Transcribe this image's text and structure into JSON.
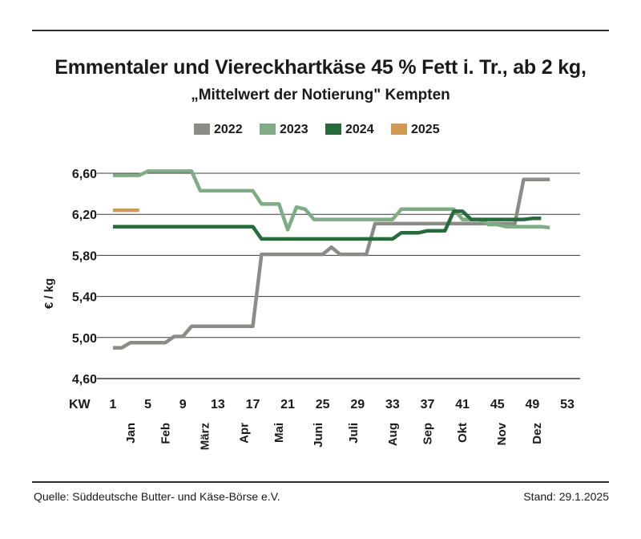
{
  "header": {
    "title": "Emmentaler und Viereckhartkäse 45 % Fett i. Tr., ab 2 kg,",
    "subtitle": "„Mittelwert der Notierung\" Kempten"
  },
  "footer": {
    "source": "Quelle: Süddeutsche Butter- und Käse-Börse e.V.",
    "date": "Stand: 29.1.2025"
  },
  "chart_data": {
    "type": "line",
    "title": "Emmentaler und Viereckhartkäse 45 % Fett i. Tr., ab 2 kg,",
    "subtitle": "„Mittelwert der Notierung\" Kempten",
    "xlabel": "KW",
    "ylabel": "€ / kg",
    "xlim": [
      0,
      53
    ],
    "ylim": [
      4.6,
      6.6
    ],
    "xticks": [
      1,
      5,
      9,
      13,
      17,
      21,
      25,
      29,
      33,
      37,
      41,
      45,
      49,
      53
    ],
    "yticks": [
      4.6,
      5.0,
      5.4,
      5.8,
      6.2,
      6.6
    ],
    "ytick_labels": [
      "4,60",
      "5,00",
      "5,40",
      "5,80",
      "6,20",
      "6,60"
    ],
    "month_labels": [
      {
        "label": "Jan",
        "kw": 3
      },
      {
        "label": "Feb",
        "kw": 7
      },
      {
        "label": "März",
        "kw": 11.5
      },
      {
        "label": "Apr",
        "kw": 16
      },
      {
        "label": "Mai",
        "kw": 20
      },
      {
        "label": "Juni",
        "kw": 24.5
      },
      {
        "label": "Juli",
        "kw": 28.5
      },
      {
        "label": "Aug",
        "kw": 33
      },
      {
        "label": "Sep",
        "kw": 37
      },
      {
        "label": "Okt",
        "kw": 41
      },
      {
        "label": "Nov",
        "kw": 45.5
      },
      {
        "label": "Dez",
        "kw": 49.5
      }
    ],
    "legend_position": "top-center",
    "grid": true,
    "series": [
      {
        "name": "2022",
        "color": "#8c8c86",
        "points": [
          [
            1,
            4.9
          ],
          [
            2,
            4.9
          ],
          [
            3,
            4.95
          ],
          [
            4,
            4.95
          ],
          [
            5,
            4.95
          ],
          [
            6,
            4.95
          ],
          [
            7,
            4.95
          ],
          [
            8,
            5.01
          ],
          [
            9,
            5.01
          ],
          [
            10,
            5.11
          ],
          [
            11,
            5.11
          ],
          [
            12,
            5.11
          ],
          [
            13,
            5.11
          ],
          [
            14,
            5.11
          ],
          [
            15,
            5.11
          ],
          [
            16,
            5.11
          ],
          [
            17,
            5.11
          ],
          [
            18,
            5.81
          ],
          [
            19,
            5.81
          ],
          [
            20,
            5.81
          ],
          [
            21,
            5.81
          ],
          [
            22,
            5.81
          ],
          [
            23,
            5.81
          ],
          [
            24,
            5.81
          ],
          [
            25,
            5.81
          ],
          [
            26,
            5.88
          ],
          [
            27,
            5.81
          ],
          [
            28,
            5.81
          ],
          [
            29,
            5.81
          ],
          [
            30,
            5.81
          ],
          [
            31,
            6.11
          ],
          [
            32,
            6.11
          ],
          [
            33,
            6.11
          ],
          [
            34,
            6.11
          ],
          [
            35,
            6.11
          ],
          [
            36,
            6.11
          ],
          [
            37,
            6.11
          ],
          [
            38,
            6.11
          ],
          [
            39,
            6.11
          ],
          [
            40,
            6.11
          ],
          [
            41,
            6.11
          ],
          [
            42,
            6.11
          ],
          [
            43,
            6.11
          ],
          [
            44,
            6.11
          ],
          [
            45,
            6.11
          ],
          [
            46,
            6.11
          ],
          [
            47,
            6.11
          ],
          [
            48,
            6.54
          ],
          [
            49,
            6.54
          ],
          [
            50,
            6.54
          ],
          [
            51,
            6.54
          ]
        ]
      },
      {
        "name": "2023",
        "color": "#7fac85",
        "points": [
          [
            1,
            6.58
          ],
          [
            2,
            6.58
          ],
          [
            3,
            6.58
          ],
          [
            4,
            6.58
          ],
          [
            5,
            6.62
          ],
          [
            6,
            6.62
          ],
          [
            7,
            6.62
          ],
          [
            8,
            6.62
          ],
          [
            9,
            6.62
          ],
          [
            10,
            6.62
          ],
          [
            11,
            6.43
          ],
          [
            12,
            6.43
          ],
          [
            13,
            6.43
          ],
          [
            14,
            6.43
          ],
          [
            15,
            6.43
          ],
          [
            16,
            6.43
          ],
          [
            17,
            6.43
          ],
          [
            18,
            6.3
          ],
          [
            19,
            6.3
          ],
          [
            20,
            6.3
          ],
          [
            21,
            6.05
          ],
          [
            22,
            6.27
          ],
          [
            23,
            6.25
          ],
          [
            24,
            6.15
          ],
          [
            25,
            6.15
          ],
          [
            26,
            6.15
          ],
          [
            27,
            6.15
          ],
          [
            28,
            6.15
          ],
          [
            29,
            6.15
          ],
          [
            30,
            6.15
          ],
          [
            31,
            6.15
          ],
          [
            32,
            6.15
          ],
          [
            33,
            6.15
          ],
          [
            34,
            6.25
          ],
          [
            35,
            6.25
          ],
          [
            36,
            6.25
          ],
          [
            37,
            6.25
          ],
          [
            38,
            6.25
          ],
          [
            39,
            6.25
          ],
          [
            40,
            6.25
          ],
          [
            41,
            6.15
          ],
          [
            42,
            6.15
          ],
          [
            43,
            6.15
          ],
          [
            44,
            6.1
          ],
          [
            45,
            6.1
          ],
          [
            46,
            6.08
          ],
          [
            47,
            6.08
          ],
          [
            48,
            6.08
          ],
          [
            49,
            6.08
          ],
          [
            50,
            6.08
          ],
          [
            51,
            6.07
          ]
        ]
      },
      {
        "name": "2024",
        "color": "#276b3c",
        "points": [
          [
            1,
            6.08
          ],
          [
            2,
            6.08
          ],
          [
            3,
            6.08
          ],
          [
            4,
            6.08
          ],
          [
            5,
            6.08
          ],
          [
            6,
            6.08
          ],
          [
            7,
            6.08
          ],
          [
            8,
            6.08
          ],
          [
            9,
            6.08
          ],
          [
            10,
            6.08
          ],
          [
            11,
            6.08
          ],
          [
            12,
            6.08
          ],
          [
            13,
            6.08
          ],
          [
            14,
            6.08
          ],
          [
            15,
            6.08
          ],
          [
            16,
            6.08
          ],
          [
            17,
            6.08
          ],
          [
            18,
            5.96
          ],
          [
            19,
            5.96
          ],
          [
            20,
            5.96
          ],
          [
            21,
            5.96
          ],
          [
            22,
            5.96
          ],
          [
            23,
            5.96
          ],
          [
            24,
            5.96
          ],
          [
            25,
            5.96
          ],
          [
            26,
            5.96
          ],
          [
            27,
            5.96
          ],
          [
            28,
            5.96
          ],
          [
            29,
            5.96
          ],
          [
            30,
            5.96
          ],
          [
            31,
            5.96
          ],
          [
            32,
            5.96
          ],
          [
            33,
            5.96
          ],
          [
            34,
            6.02
          ],
          [
            35,
            6.02
          ],
          [
            36,
            6.02
          ],
          [
            37,
            6.04
          ],
          [
            38,
            6.04
          ],
          [
            39,
            6.04
          ],
          [
            40,
            6.23
          ],
          [
            41,
            6.23
          ],
          [
            42,
            6.15
          ],
          [
            43,
            6.15
          ],
          [
            44,
            6.15
          ],
          [
            45,
            6.15
          ],
          [
            46,
            6.15
          ],
          [
            47,
            6.15
          ],
          [
            48,
            6.15
          ],
          [
            49,
            6.16
          ],
          [
            50,
            6.16
          ]
        ]
      },
      {
        "name": "2025",
        "color": "#cf9a4f",
        "points": [
          [
            1,
            6.24
          ],
          [
            2,
            6.24
          ],
          [
            3,
            6.24
          ],
          [
            4,
            6.24
          ]
        ]
      }
    ]
  }
}
